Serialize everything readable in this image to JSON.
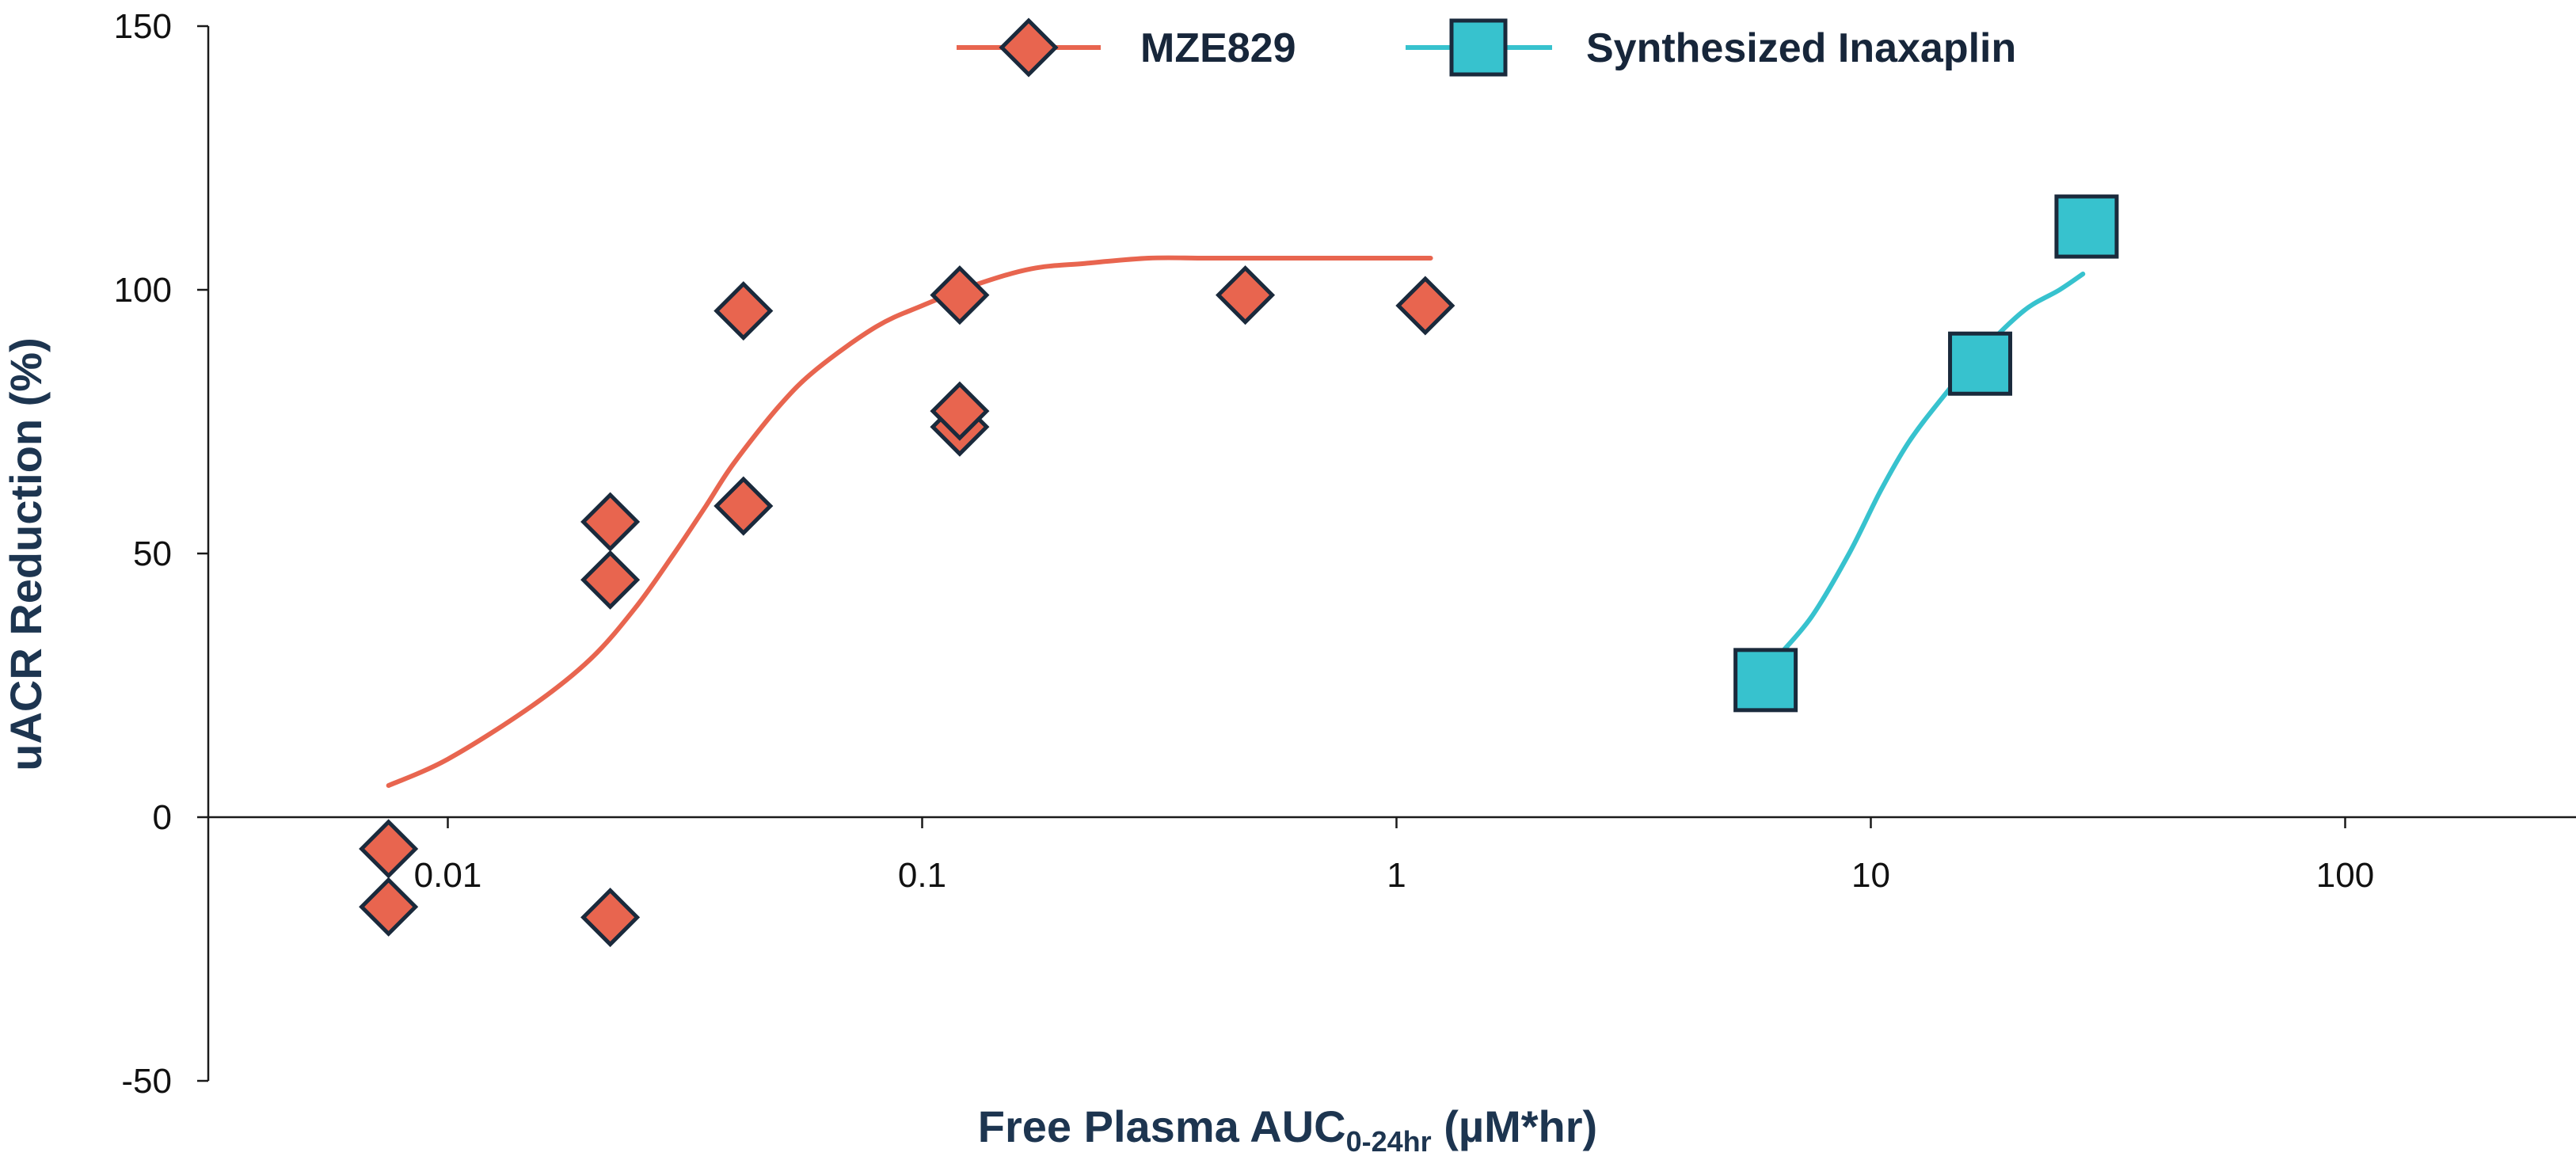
{
  "chart_data": {
    "type": "scatter",
    "title": "",
    "xlabel": {
      "main": "Free Plasma AUC",
      "subscript": "0-24hr",
      "unit": " (µM*hr)"
    },
    "ylabel": "uACR Reduction (%)",
    "x_scale": "log",
    "xlim": [
      0.0025,
      400
    ],
    "ylim": [
      -50,
      150
    ],
    "x_ticks": [
      {
        "value": 0.01,
        "label": "0.01"
      },
      {
        "value": 0.1,
        "label": "0.1"
      },
      {
        "value": 1,
        "label": "1"
      },
      {
        "value": 10,
        "label": "10"
      },
      {
        "value": 100,
        "label": "100"
      }
    ],
    "y_ticks": [
      {
        "value": -50,
        "label": "-50"
      },
      {
        "value": 0,
        "label": "0"
      },
      {
        "value": 50,
        "label": "50"
      },
      {
        "value": 100,
        "label": "100"
      },
      {
        "value": 150,
        "label": "150"
      }
    ],
    "grid": false,
    "legend": "top-center",
    "series": [
      {
        "name": "MZE829",
        "marker": "diamond",
        "color": "#e8654f",
        "marker_edge": "#1a2a3c",
        "points": [
          {
            "x": 0.0075,
            "y": -6
          },
          {
            "x": 0.0075,
            "y": -17
          },
          {
            "x": 0.022,
            "y": 56
          },
          {
            "x": 0.022,
            "y": 45
          },
          {
            "x": 0.022,
            "y": -19
          },
          {
            "x": 0.042,
            "y": 96
          },
          {
            "x": 0.042,
            "y": 59
          },
          {
            "x": 0.12,
            "y": 99
          },
          {
            "x": 0.12,
            "y": 74
          },
          {
            "x": 0.12,
            "y": 77
          },
          {
            "x": 0.48,
            "y": 99
          },
          {
            "x": 1.15,
            "y": 97
          }
        ],
        "fit_curve": {
          "x": [
            0.0075,
            0.01,
            0.015,
            0.02,
            0.025,
            0.03,
            0.035,
            0.04,
            0.05,
            0.06,
            0.08,
            0.1,
            0.13,
            0.17,
            0.22,
            0.3,
            0.4,
            0.6,
            1.0,
            1.18
          ],
          "y": [
            6,
            11,
            21,
            30,
            40,
            50,
            59,
            67,
            78,
            85,
            93,
            97,
            101,
            104,
            105,
            106,
            106,
            106,
            106,
            106
          ]
        }
      },
      {
        "name": "Synthesized Inaxaplin",
        "marker": "square",
        "color": "#37c2ce",
        "marker_edge": "#1a2a3c",
        "points": [
          {
            "x": 6.0,
            "y": 26
          },
          {
            "x": 17.0,
            "y": 86
          },
          {
            "x": 28.5,
            "y": 112
          }
        ],
        "fit_curve": {
          "x": [
            6.3,
            7.5,
            9.0,
            10.5,
            12.0,
            14.0,
            17.0,
            21.0,
            25.0,
            28.0
          ],
          "y": [
            30,
            38,
            50,
            62,
            71,
            79,
            88,
            96,
            100,
            103
          ]
        }
      }
    ]
  }
}
